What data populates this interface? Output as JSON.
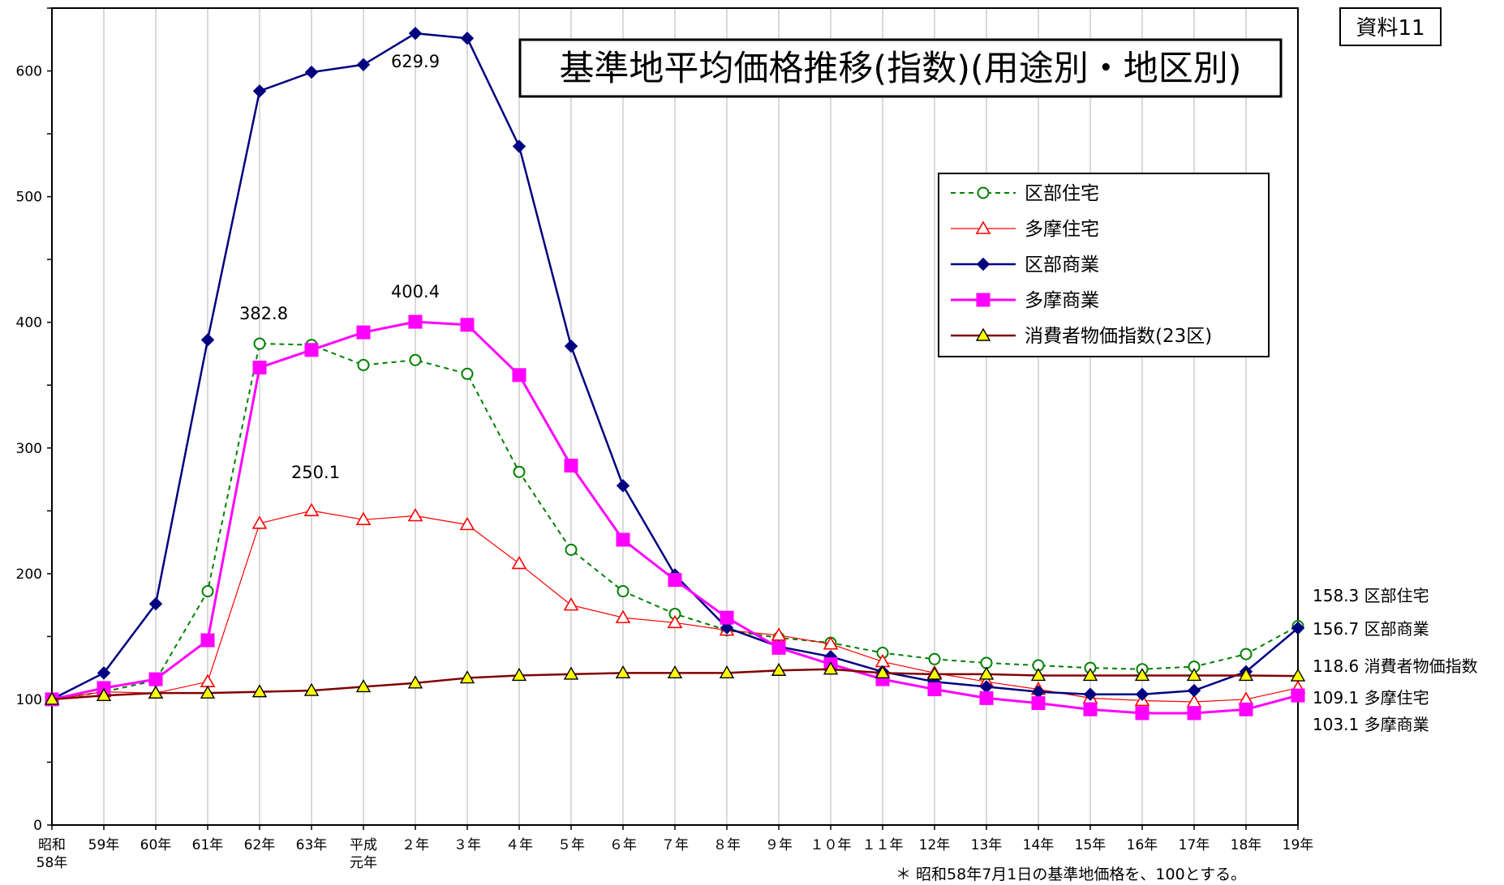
{
  "doc_label": "資料11",
  "footnote": "＊ 昭和58年7月1日の基準地価格を、100とする。",
  "colors": {
    "ku_jutaku": "#008000",
    "tama_jutaku": "#ff0000",
    "ku_shogyo": "#000080",
    "tama_shogyo": "#ff00ff",
    "cpi": "#800000",
    "cpi_fill": "#ffff00",
    "grid": "#c0c0c0"
  },
  "chart_data": {
    "type": "line",
    "title": "基準地平均価格推移(指数)(用途別・地区別)",
    "categories": [
      [
        "昭和",
        "58年"
      ],
      [
        "59年"
      ],
      [
        "60年"
      ],
      [
        "61年"
      ],
      [
        "62年"
      ],
      [
        "63年"
      ],
      [
        "平成",
        "元年"
      ],
      [
        "２年"
      ],
      [
        "３年"
      ],
      [
        "４年"
      ],
      [
        "５年"
      ],
      [
        "６年"
      ],
      [
        "７年"
      ],
      [
        "８年"
      ],
      [
        "９年"
      ],
      [
        "１０年"
      ],
      [
        "１１年"
      ],
      [
        "12年"
      ],
      [
        "13年"
      ],
      [
        "14年"
      ],
      [
        "15年"
      ],
      [
        "16年"
      ],
      [
        "17年"
      ],
      [
        "18年"
      ],
      [
        "19年"
      ]
    ],
    "ylim": [
      0,
      650
    ],
    "yticks": [
      0,
      100,
      200,
      300,
      400,
      500,
      600
    ],
    "series": [
      {
        "key": "ku_jutaku",
        "name": "区部住宅",
        "marker": "circle-open",
        "dash": "dotted",
        "values": [
          100,
          106,
          115,
          186,
          383,
          382,
          366,
          370,
          359,
          281,
          219,
          186,
          168,
          155,
          149,
          145,
          137,
          132,
          129,
          127,
          125,
          124,
          126,
          136,
          158.3
        ]
      },
      {
        "key": "tama_jutaku",
        "name": "多摩住宅",
        "marker": "triangle-open",
        "dash": "solid-thin",
        "values": [
          100,
          106,
          105,
          114,
          240,
          250.1,
          243,
          246,
          239,
          208,
          175,
          165,
          161,
          155,
          151,
          144,
          130,
          121,
          114,
          108,
          101,
          99,
          98,
          100,
          109.1
        ]
      },
      {
        "key": "ku_shogyo",
        "name": "区部商業",
        "marker": "diamond",
        "dash": "solid",
        "values": [
          100,
          121,
          176,
          386,
          584,
          599,
          605,
          629.9,
          626,
          540,
          381,
          270,
          199,
          157,
          142,
          134,
          122,
          114,
          110,
          106,
          104,
          104,
          107,
          122,
          156.7
        ]
      },
      {
        "key": "tama_shogyo",
        "name": "多摩商業",
        "marker": "square",
        "dash": "solid",
        "values": [
          100,
          109,
          116,
          147,
          364,
          378,
          392,
          400.4,
          398,
          358,
          286,
          227,
          195,
          165,
          141,
          128,
          116,
          108,
          101,
          97,
          92,
          89,
          89,
          92,
          103.1
        ]
      },
      {
        "key": "cpi",
        "name": "消費者物価指数(23区)",
        "marker": "triangle-filled",
        "dash": "solid",
        "values": [
          100,
          103,
          105,
          105,
          106,
          107,
          110,
          113,
          117,
          119,
          120,
          121,
          121,
          121,
          123,
          124,
          121,
          120,
          120,
          119,
          119,
          119,
          119,
          119,
          118.6
        ]
      }
    ],
    "annotations": [
      {
        "text": "629.9",
        "series": "ku_shogyo",
        "index": 7
      },
      {
        "text": "400.4",
        "series": "tama_shogyo",
        "index": 7
      },
      {
        "text": "382.8",
        "series": "ku_jutaku",
        "index": 4
      },
      {
        "text": "250.1",
        "series": "tama_jutaku",
        "index": 5
      }
    ],
    "end_labels": [
      {
        "value": "158.3",
        "name": "区部住宅"
      },
      {
        "value": "156.7",
        "name": "区部商業"
      },
      {
        "value": "118.6",
        "name": "消費者物価指数"
      },
      {
        "value": "109.1",
        "name": "多摩住宅"
      },
      {
        "value": "103.1",
        "name": "多摩商業"
      }
    ],
    "legend_position": "upper-right"
  }
}
